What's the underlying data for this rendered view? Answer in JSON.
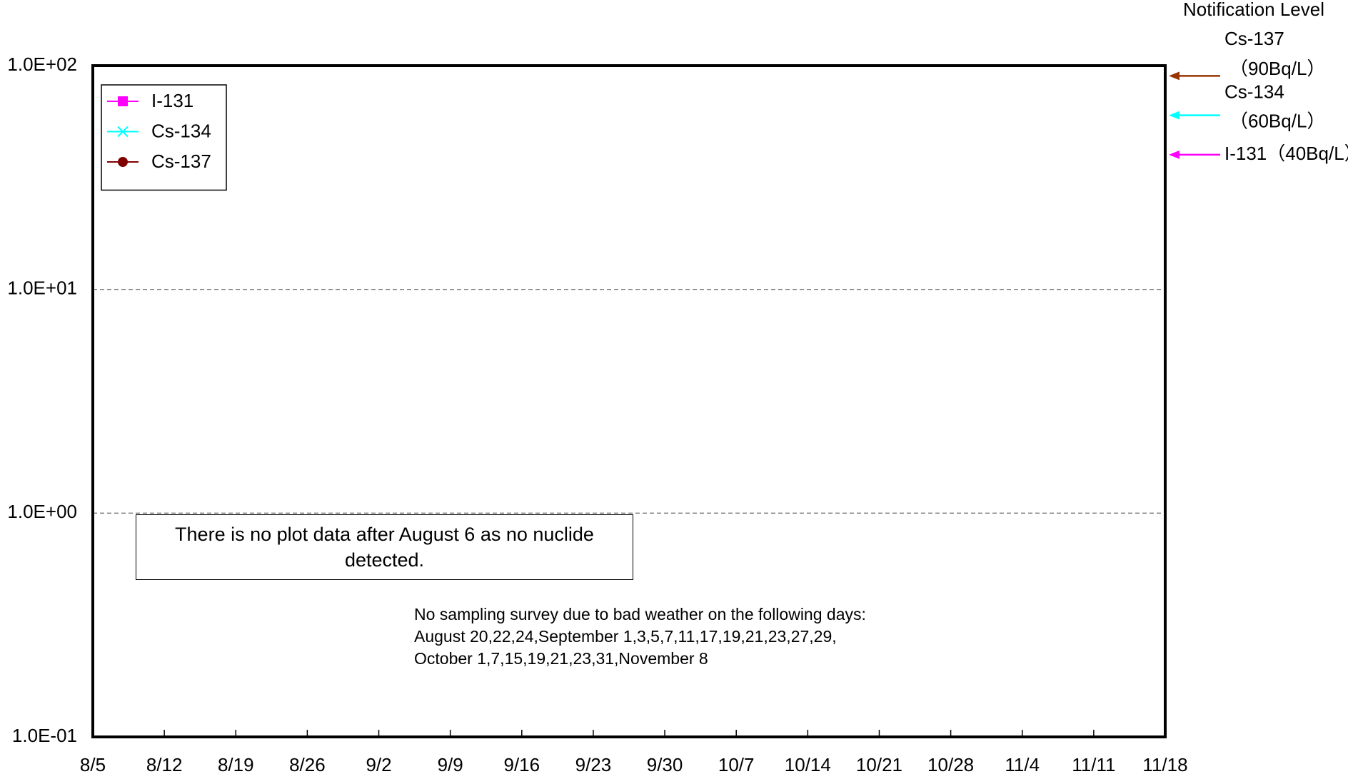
{
  "chart_data": {
    "type": "line",
    "categories": [
      "8/5",
      "8/12",
      "8/19",
      "8/26",
      "9/2",
      "9/9",
      "9/16",
      "9/23",
      "9/30",
      "10/7",
      "10/14",
      "10/21",
      "10/28",
      "11/4",
      "11/11",
      "11/18"
    ],
    "series": [
      {
        "name": "I-131",
        "color": "#ff00ff",
        "marker": "square",
        "values": [
          null,
          null,
          null,
          null,
          null,
          null,
          null,
          null,
          null,
          null,
          null,
          null,
          null,
          null,
          null,
          null
        ]
      },
      {
        "name": "Cs-134",
        "color": "#00ffff",
        "marker": "x",
        "values": [
          null,
          null,
          null,
          null,
          null,
          null,
          null,
          null,
          null,
          null,
          null,
          null,
          null,
          null,
          null,
          null
        ]
      },
      {
        "name": "Cs-137",
        "color": "#800000",
        "marker": "circle",
        "values": [
          null,
          null,
          null,
          null,
          null,
          null,
          null,
          null,
          null,
          null,
          null,
          null,
          null,
          null,
          null,
          null
        ]
      }
    ],
    "log_scale": true,
    "ylim": [
      0.1,
      100
    ],
    "yticks": [
      {
        "value": 0.1,
        "label": "1.0E-01"
      },
      {
        "value": 1,
        "label": "1.0E+00"
      },
      {
        "value": 10,
        "label": "1.0E+01"
      },
      {
        "value": 100,
        "label": "1.0E+02"
      }
    ],
    "grid": true,
    "legend": "upper left",
    "note": "There is no plot data after August 6 as no nuclide detected.",
    "weather_note": [
      "No sampling survey due to bad weather on the following days:",
      "August 20,22,24,September 1,3,5,7,11,17,19,21,23,27,29,",
      "October 1,7,15,19,21,23,31,November 8"
    ],
    "notification_title": "Notification Level",
    "notification_levels": [
      {
        "name": "Cs-137",
        "label": "（90Bq/L）",
        "value": 90,
        "color": "#993300"
      },
      {
        "name": "Cs-134",
        "label": "（60Bq/L）",
        "value": 60,
        "color": "#00ffff"
      },
      {
        "name": "I-131",
        "label": "（40Bq/L）",
        "value": 40,
        "color": "#ff00ff"
      }
    ]
  }
}
